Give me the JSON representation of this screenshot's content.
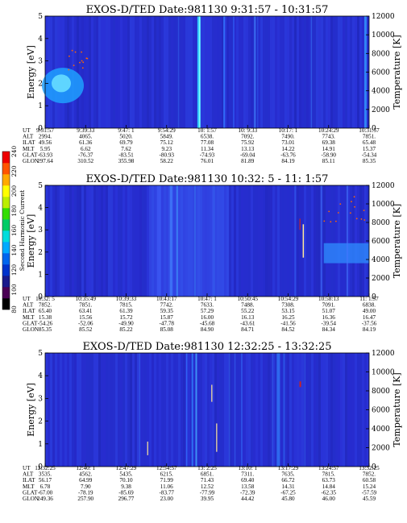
{
  "figure": {
    "colorbar": {
      "label": "Second Harmonic Current",
      "ticks": [
        "240",
        "220",
        "200",
        "180",
        "160",
        "140",
        "120",
        "100",
        "80"
      ],
      "colors": [
        "#000000",
        "#4b0055",
        "#1a1a8c",
        "#0033cc",
        "#0066ee",
        "#00aaff",
        "#00dddd",
        "#00cc66",
        "#33dd00",
        "#bbee00",
        "#ffff00",
        "#ffaa00",
        "#ff5500",
        "#ee0000"
      ]
    },
    "background_color": "#2a2ad4"
  },
  "chart_data": [
    {
      "type": "heatmap",
      "title": "EXOS-D/TED    Date:981130  9:31:57 - 10:31:57",
      "ylabel": "Energy [eV]",
      "ylabel2": "Temperature [K]",
      "ylim": [
        0,
        5
      ],
      "ylim2": [
        0,
        12000
      ],
      "yticks": [
        "0",
        "1",
        "2",
        "3",
        "4",
        "5"
      ],
      "yticks2": [
        "0",
        "2000",
        "4000",
        "6000",
        "8000",
        "10000",
        "12000"
      ],
      "rows": [
        "UT",
        "ALT",
        "ILAT",
        "MLT",
        "GLAT",
        "GLON"
      ],
      "table": [
        [
          "9:31:57",
          "9:39:33",
          "9:47: 1",
          "9:54:29",
          "10: 1:57",
          "10: 9:33",
          "10:17: 1",
          "10:24:29",
          "10:31:57"
        ],
        [
          "2994.",
          "4065.",
          "5020.",
          "5849.",
          "6538.",
          "7092.",
          "7490.",
          "7743.",
          "7851."
        ],
        [
          "49.56",
          "61.36",
          "69.79",
          "75.12",
          "77.08",
          "75.92",
          "73.01",
          "69.38",
          "65.48"
        ],
        [
          "5.95",
          "6.62",
          "7.62",
          "9.23",
          "11.34",
          "13.13",
          "14.22",
          "14.91",
          "15.37"
        ],
        [
          "-63.93",
          "-76.37",
          "-83.51",
          "-80.93",
          "-74.93",
          "-69.04",
          "-63.76",
          "-58.90",
          "-54.34"
        ],
        [
          "297.64",
          "310.52",
          "355.98",
          "58.22",
          "76.01",
          "81.89",
          "84.19",
          "85.11",
          "85.35"
        ]
      ]
    },
    {
      "type": "heatmap",
      "title": "EXOS-D/TED    Date:981130  10:32: 5 - 11: 1:57",
      "ylabel": "Energy [eV]",
      "ylabel2": "Temperature [K]",
      "ylim": [
        0,
        5
      ],
      "ylim2": [
        0,
        12000
      ],
      "yticks": [
        "0",
        "1",
        "2",
        "3",
        "4",
        "5"
      ],
      "yticks2": [
        "0",
        "2000",
        "4000",
        "6000",
        "8000",
        "10000",
        "12000"
      ],
      "rows": [
        "UT",
        "ALT",
        "ILAT",
        "MLT",
        "GLAT",
        "GLON"
      ],
      "table": [
        [
          "10:32: 5",
          "10:35:49",
          "10:39:33",
          "10:43:17",
          "10:47: 1",
          "10:50:45",
          "10:54:29",
          "10:58:13",
          "11: 1:57"
        ],
        [
          "7852.",
          "7851.",
          "7815.",
          "7742.",
          "7633.",
          "7488.",
          "7308.",
          "7091.",
          "6838."
        ],
        [
          "65.40",
          "63.41",
          "61.39",
          "59.35",
          "57.29",
          "55.22",
          "53.15",
          "51.07",
          "49.00"
        ],
        [
          "15.38",
          "15.56",
          "15.72",
          "15.87",
          "16.00",
          "16.13",
          "16.25",
          "16.36",
          "16.47"
        ],
        [
          "-54.26",
          "-52.06",
          "-49.90",
          "-47.78",
          "-45.68",
          "-43.61",
          "-41.56",
          "-39.54",
          "-37.56"
        ],
        [
          "85.35",
          "85.52",
          "85.22",
          "85.08",
          "84.90",
          "84.71",
          "84.52",
          "84.34",
          "84.19"
        ]
      ]
    },
    {
      "type": "heatmap",
      "title": "EXOS-D/TED    Date:981130  12:32:25 - 13:32:25",
      "ylabel": "Energy [eV]",
      "ylabel2": "Temperature [K]",
      "ylim": [
        0,
        5
      ],
      "ylim2": [
        0,
        12000
      ],
      "yticks": [
        "0",
        "1",
        "2",
        "3",
        "4",
        "5"
      ],
      "yticks2": [
        "0",
        "2000",
        "4000",
        "6000",
        "8000",
        "10000",
        "12000"
      ],
      "rows": [
        "UT",
        "ALT",
        "ILAT",
        "MLT",
        "GLAT",
        "GLON"
      ],
      "table": [
        [
          "12:32:25",
          "12:40: 1",
          "12:47:29",
          "12:54:57",
          "13: 2:25",
          "13:10: 1",
          "13:17:29",
          "13:24:57",
          "13:32:25"
        ],
        [
          "3535.",
          "4562.",
          "5435.",
          "6215.",
          "6851.",
          "7311.",
          "7635.",
          "7815.",
          "7852."
        ],
        [
          "56.17",
          "64.99",
          "70.10",
          "71.99",
          "71.43",
          "69.40",
          "66.72",
          "63.73",
          "60.58"
        ],
        [
          "6.78",
          "7.90",
          "9.38",
          "11.06",
          "12.52",
          "13.58",
          "14.31",
          "14.84",
          "15.24"
        ],
        [
          "-67.00",
          "-78.19",
          "-85.69",
          "-83.77",
          "-77.99",
          "-72.39",
          "-67.25",
          "-62.35",
          "-57.59"
        ],
        [
          "249.36",
          "257.90",
          "296.77",
          "23.00",
          "39.95",
          "44.42",
          "45.80",
          "46.00",
          "45.59"
        ]
      ]
    }
  ]
}
